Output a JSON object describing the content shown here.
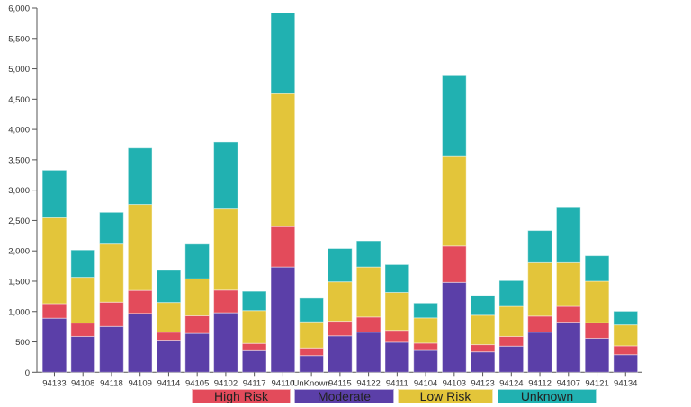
{
  "chart_data": {
    "type": "bar",
    "stacked": true,
    "categories": [
      "94133",
      "94108",
      "94118",
      "94109",
      "94114",
      "94105",
      "94102",
      "94117",
      "94110",
      "UnKnown",
      "94115",
      "94122",
      "94111",
      "94104",
      "94103",
      "94123",
      "94124",
      "94112",
      "94107",
      "94121",
      "94134"
    ],
    "series": [
      {
        "name": "Moderate",
        "color": "#5b3fa8",
        "values": [
          890,
          590,
          755,
          970,
          530,
          640,
          980,
          355,
          1735,
          275,
          600,
          660,
          495,
          360,
          1480,
          335,
          430,
          660,
          825,
          560,
          290
        ]
      },
      {
        "name": "High Risk",
        "color": "#e34b5b",
        "values": [
          240,
          220,
          400,
          380,
          130,
          290,
          375,
          120,
          665,
          125,
          240,
          250,
          195,
          120,
          600,
          120,
          160,
          265,
          260,
          255,
          145
        ]
      },
      {
        "name": "Low Risk",
        "color": "#e3c53a",
        "values": [
          1415,
          755,
          957,
          1415,
          490,
          610,
          1335,
          540,
          2190,
          430,
          650,
          825,
          625,
          415,
          1475,
          485,
          495,
          880,
          720,
          685,
          345
        ]
      },
      {
        "name": "Unknown",
        "color": "#21b1b1",
        "values": [
          785,
          450,
          523,
          930,
          530,
          570,
          1105,
          320,
          1335,
          390,
          550,
          430,
          460,
          245,
          1330,
          325,
          425,
          530,
          920,
          420,
          225
        ]
      }
    ],
    "y_ticks": [
      "0",
      "500",
      "1,000",
      "1,500",
      "2,000",
      "2,500",
      "3,000",
      "3,500",
      "4,000",
      "4,500",
      "5,000",
      "5,500",
      "6,000"
    ],
    "ylim": [
      0,
      6000
    ],
    "grid": false,
    "legend": {
      "placement": "bottom",
      "order": [
        "High Risk",
        "Moderate",
        "Low Risk",
        "Unknown"
      ]
    }
  }
}
